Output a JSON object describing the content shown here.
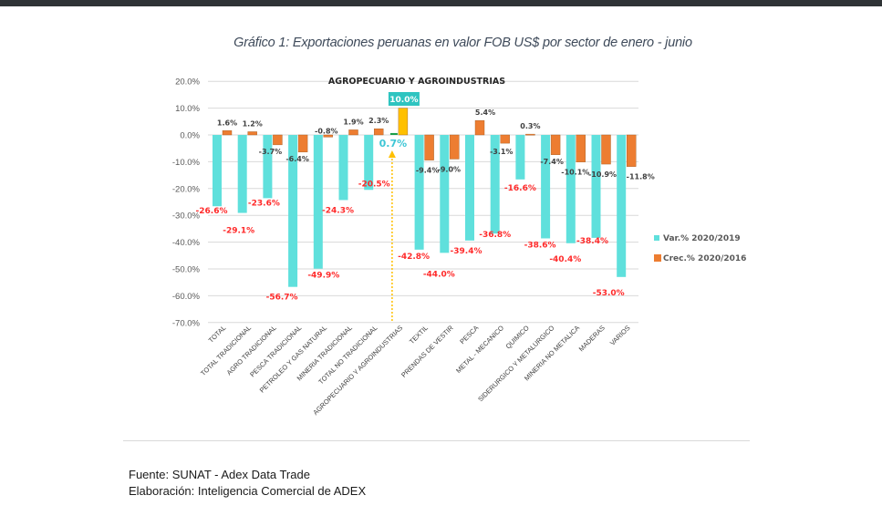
{
  "chart_data": {
    "type": "bar",
    "title": "Gráfico 1: Exportaciones peruanas en valor FOB US$ por sector de enero - junio",
    "annotation": {
      "label": "AGROPECUARIO Y AGROINDUSTRIAS",
      "highlight_category": "AGROPECUARIO Y AGROINDUSTRIAS",
      "highlight_var": "0.7%",
      "highlight_crec": "10.0%"
    },
    "xlabel": "",
    "ylabel": "",
    "ylim": [
      -70,
      20
    ],
    "yticks": [
      20,
      10,
      0,
      -10,
      -20,
      -30,
      -40,
      -50,
      -60,
      -70
    ],
    "ytick_labels": [
      "20.0%",
      "10.0%",
      "0.0%",
      "-10.0%",
      "-20.0%",
      "-30.0%",
      "-40.0%",
      "-50.0%",
      "-60.0%",
      "-70.0%"
    ],
    "grid": true,
    "legend_position": "right",
    "categories": [
      "TOTAL",
      "TOTAL TRADICIONAL",
      "AGRO TRADICIONAL",
      "PESCA TRADICIONAL",
      "PETROLEO Y GAS NATURAL",
      "MINERIA TRADICIONAL",
      "TOTAL NO TRADICIONAL",
      "AGROPECUARIO Y AGROINDUSTRIAS",
      "TEXTIL",
      "PRENDAS DE VESTIR",
      "PESCA",
      "METAL - MECANICO",
      "QUIMICO",
      "SIDERURGICO Y METALURGICO",
      "MINERIA NO METALICA",
      "MADERAS",
      "VARIOS"
    ],
    "series": [
      {
        "name": "Var.% 2020/2019",
        "color": "#5fe0dc",
        "highlight_color": "#1a9e4a",
        "label_color": "#ff2a2a",
        "values": [
          -26.6,
          -29.1,
          -23.6,
          -56.7,
          -49.9,
          -24.3,
          -20.5,
          0.7,
          -42.8,
          -44.0,
          -39.4,
          -36.8,
          -16.6,
          -38.6,
          -40.4,
          -38.4,
          -53.0
        ],
        "labels": [
          "-26.6%",
          "-29.1%",
          "-23.6%",
          "-56.7%",
          "-49.9%",
          "-24.3%",
          "-20.5%",
          "0.7%",
          "-42.8%",
          "-44.0%",
          "-39.4%",
          "-36.8%",
          "-16.6%",
          "-38.6%",
          "-40.4%",
          "-38.4%",
          "-53.0%"
        ]
      },
      {
        "name": "Crec.% 2020/2016",
        "color": "#ed7d31",
        "highlight_color": "#ffc000",
        "label_color": "#404040",
        "values": [
          1.6,
          1.2,
          -3.7,
          -6.4,
          -0.8,
          1.9,
          2.3,
          10.0,
          -9.4,
          -9.0,
          5.4,
          -3.1,
          0.3,
          -7.4,
          -10.1,
          -10.9,
          -11.8
        ],
        "labels": [
          "1.6%",
          "1.2%",
          "-3.7%",
          "-6.4%",
          "-0.8%",
          "1.9%",
          "2.3%",
          "10.0%",
          "-9.4%",
          "-9.0%",
          "5.4%",
          "-3.1%",
          "0.3%",
          "-7.4%",
          "-10.1%",
          "-10.9%",
          "-11.8%"
        ]
      }
    ]
  },
  "footer": {
    "source": "Fuente: SUNAT - Adex Data Trade",
    "elaboration": "Elaboración: Inteligencia Comercial de ADEX"
  },
  "colors": {
    "topbar": "#2f3336",
    "highlight_box": "#2ec4c0",
    "highlight_text": "#3ec6d6",
    "arrow": "#ffc000"
  }
}
